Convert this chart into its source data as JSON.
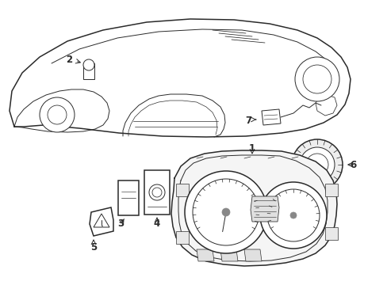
{
  "background_color": "#ffffff",
  "line_color": "#2a2a2a",
  "lw": 1.1,
  "tlw": 0.7,
  "fig_width": 4.89,
  "fig_height": 3.6,
  "dpi": 100,
  "label_fontsize": 8.5
}
